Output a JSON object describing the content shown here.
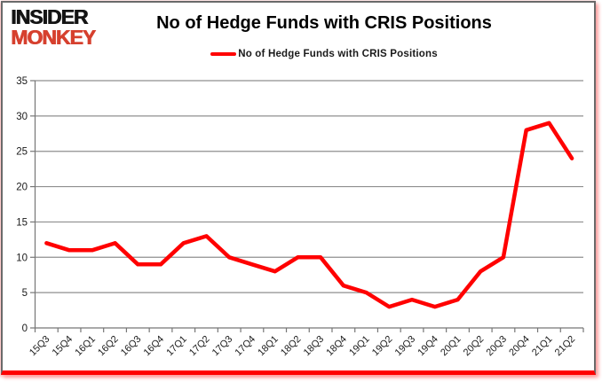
{
  "logo": {
    "line1": "INSIDER",
    "line2": "MONKEY"
  },
  "header": {
    "title": "No of Hedge Funds with CRIS Positions"
  },
  "legend": {
    "label": "No of Hedge Funds with CRIS Positions"
  },
  "colors": {
    "line": "#ff0000",
    "legend_swatch": "#ff0000",
    "logo_black": "#141414",
    "logo_red": "#d6402e",
    "gridline": "#8f8f8f",
    "axis": "#767676",
    "tick_label": "#1a1a1a",
    "frame_border": "#6a6a6a",
    "frame_bottom_bar": "#ff0000",
    "frame_glow": "#ff9e9e"
  },
  "chart_data": {
    "type": "line",
    "title": "No of Hedge Funds with CRIS Positions",
    "xlabel": "",
    "ylabel": "",
    "categories": [
      "15Q3",
      "15Q4",
      "16Q1",
      "16Q2",
      "16Q3",
      "16Q4",
      "17Q1",
      "17Q2",
      "17Q3",
      "17Q4",
      "18Q1",
      "18Q2",
      "18Q3",
      "18Q4",
      "19Q1",
      "19Q2",
      "19Q3",
      "19Q4",
      "20Q1",
      "20Q2",
      "20Q3",
      "20Q4",
      "21Q1",
      "21Q2"
    ],
    "series": [
      {
        "name": "No of Hedge Funds with CRIS Positions",
        "color": "#ff0000",
        "values": [
          12,
          11,
          11,
          12,
          9,
          9,
          12,
          13,
          10,
          9,
          8,
          10,
          10,
          6,
          5,
          3,
          4,
          3,
          4,
          8,
          10,
          28,
          29,
          24
        ]
      }
    ],
    "ylim": [
      0,
      35
    ],
    "ytick_step": 5,
    "grid": true,
    "legend_position": "top-center",
    "x_tick_label_rotation_deg": -45
  }
}
